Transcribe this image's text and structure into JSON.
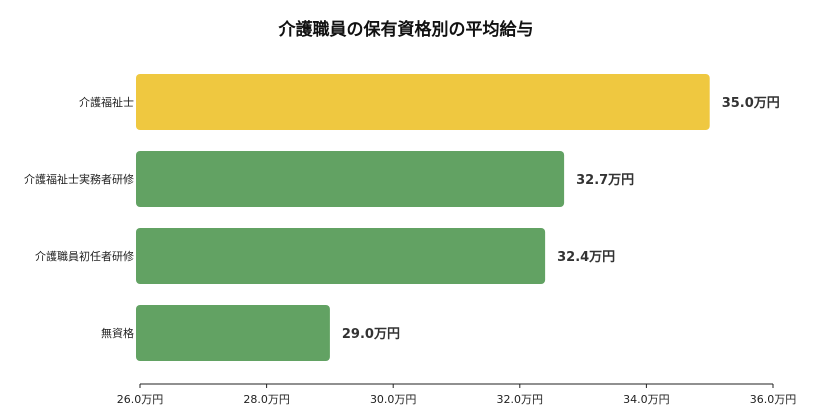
{
  "chart_data": {
    "type": "bar",
    "orientation": "horizontal",
    "title": "介護職員の保有資格別の平均給与",
    "categories": [
      "介護福祉士",
      "介護福祉士実務者研修",
      "介護職員初任者研修",
      "無資格"
    ],
    "values": [
      35.0,
      32.7,
      32.4,
      29.0
    ],
    "value_labels": [
      "35.0万円",
      "32.7万円",
      "32.4万円",
      "29.0万円"
    ],
    "bar_colors": [
      "#efc840",
      "#62a263",
      "#62a263",
      "#62a263"
    ],
    "xlim": [
      26.0,
      36.0
    ],
    "xticks": [
      26.0,
      28.0,
      30.0,
      32.0,
      34.0,
      36.0
    ],
    "xtick_labels": [
      "26.0万円",
      "28.0万円",
      "30.0万円",
      "32.0万円",
      "34.0万円",
      "36.0万円"
    ],
    "xlabel": "",
    "ylabel": "",
    "grid": false,
    "legend": "none"
  }
}
